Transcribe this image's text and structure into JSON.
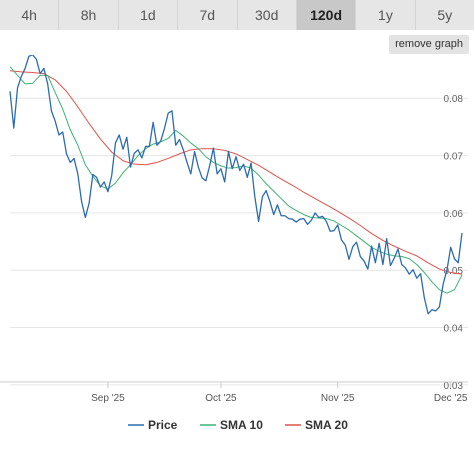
{
  "tabs": [
    {
      "label": "4h",
      "active": false
    },
    {
      "label": "8h",
      "active": false
    },
    {
      "label": "1d",
      "active": false
    },
    {
      "label": "7d",
      "active": false
    },
    {
      "label": "30d",
      "active": false
    },
    {
      "label": "120d",
      "active": true
    },
    {
      "label": "1y",
      "active": false
    },
    {
      "label": "5y",
      "active": false
    }
  ],
  "remove_graph_label": "remove graph",
  "chart_data": {
    "type": "line",
    "xlim": [
      "2025-08-06",
      "2025-12-04"
    ],
    "ylim": [
      0.0305,
      0.0858
    ],
    "x_ticks": [
      {
        "date": "2025-09-01",
        "label": "Sep '25"
      },
      {
        "date": "2025-10-01",
        "label": "Oct '25"
      },
      {
        "date": "2025-11-01",
        "label": "Nov '25"
      },
      {
        "date": "2025-12-01",
        "label": "Dec '25"
      }
    ],
    "y_ticks": [
      {
        "value": 0.03,
        "label": "0.03"
      },
      {
        "value": 0.04,
        "label": "0.04"
      },
      {
        "value": 0.05,
        "label": "0.05"
      },
      {
        "value": 0.06,
        "label": "0.06"
      },
      {
        "value": 0.07,
        "label": "0.07"
      },
      {
        "value": 0.08,
        "label": "0.08"
      }
    ],
    "grid": "horizontal",
    "legend_position": "bottom",
    "series": [
      {
        "name": "Price",
        "color": "#2b6cb0",
        "points": [
          [
            "2025-08-06",
            0.0812
          ],
          [
            "2025-08-07",
            0.0748
          ],
          [
            "2025-08-08",
            0.0818
          ],
          [
            "2025-08-09",
            0.0838
          ],
          [
            "2025-08-10",
            0.0852
          ],
          [
            "2025-08-11",
            0.0873
          ],
          [
            "2025-08-12",
            0.0876
          ],
          [
            "2025-08-13",
            0.0868
          ],
          [
            "2025-08-14",
            0.0843
          ],
          [
            "2025-08-15",
            0.0852
          ],
          [
            "2025-08-16",
            0.0825
          ],
          [
            "2025-08-17",
            0.0778
          ],
          [
            "2025-08-18",
            0.076
          ],
          [
            "2025-08-19",
            0.0736
          ],
          [
            "2025-08-20",
            0.0741
          ],
          [
            "2025-08-21",
            0.0703
          ],
          [
            "2025-08-22",
            0.0688
          ],
          [
            "2025-08-23",
            0.0695
          ],
          [
            "2025-08-24",
            0.0668
          ],
          [
            "2025-08-25",
            0.062
          ],
          [
            "2025-08-26",
            0.0592
          ],
          [
            "2025-08-27",
            0.0617
          ],
          [
            "2025-08-28",
            0.0667
          ],
          [
            "2025-08-29",
            0.0662
          ],
          [
            "2025-08-30",
            0.0645
          ],
          [
            "2025-08-31",
            0.0654
          ],
          [
            "2025-09-01",
            0.0637
          ],
          [
            "2025-09-02",
            0.0665
          ],
          [
            "2025-09-03",
            0.0722
          ],
          [
            "2025-09-04",
            0.0736
          ],
          [
            "2025-09-05",
            0.0711
          ],
          [
            "2025-09-06",
            0.0732
          ],
          [
            "2025-09-07",
            0.068
          ],
          [
            "2025-09-08",
            0.0704
          ],
          [
            "2025-09-09",
            0.071
          ],
          [
            "2025-09-10",
            0.0696
          ],
          [
            "2025-09-11",
            0.0716
          ],
          [
            "2025-09-12",
            0.0716
          ],
          [
            "2025-09-13",
            0.0758
          ],
          [
            "2025-09-14",
            0.0718
          ],
          [
            "2025-09-15",
            0.0725
          ],
          [
            "2025-09-16",
            0.0747
          ],
          [
            "2025-09-17",
            0.0774
          ],
          [
            "2025-09-18",
            0.0778
          ],
          [
            "2025-09-19",
            0.0718
          ],
          [
            "2025-09-20",
            0.0728
          ],
          [
            "2025-09-21",
            0.071
          ],
          [
            "2025-09-22",
            0.0688
          ],
          [
            "2025-09-23",
            0.0668
          ],
          [
            "2025-09-24",
            0.0707
          ],
          [
            "2025-09-25",
            0.068
          ],
          [
            "2025-09-26",
            0.0661
          ],
          [
            "2025-09-27",
            0.0656
          ],
          [
            "2025-09-28",
            0.0682
          ],
          [
            "2025-09-29",
            0.0713
          ],
          [
            "2025-09-30",
            0.0668
          ],
          [
            "2025-10-01",
            0.0677
          ],
          [
            "2025-10-02",
            0.0654
          ],
          [
            "2025-10-03",
            0.0707
          ],
          [
            "2025-10-04",
            0.0677
          ],
          [
            "2025-10-05",
            0.0698
          ],
          [
            "2025-10-06",
            0.0674
          ],
          [
            "2025-10-07",
            0.0685
          ],
          [
            "2025-10-08",
            0.0662
          ],
          [
            "2025-10-09",
            0.0687
          ],
          [
            "2025-10-10",
            0.0628
          ],
          [
            "2025-10-11",
            0.0585
          ],
          [
            "2025-10-12",
            0.0628
          ],
          [
            "2025-10-13",
            0.0639
          ],
          [
            "2025-10-14",
            0.062
          ],
          [
            "2025-10-15",
            0.0597
          ],
          [
            "2025-10-16",
            0.0614
          ],
          [
            "2025-10-17",
            0.0595
          ],
          [
            "2025-10-18",
            0.0595
          ],
          [
            "2025-10-19",
            0.059
          ],
          [
            "2025-10-20",
            0.0589
          ],
          [
            "2025-10-21",
            0.0584
          ],
          [
            "2025-10-22",
            0.0589
          ],
          [
            "2025-10-23",
            0.059
          ],
          [
            "2025-10-24",
            0.058
          ],
          [
            "2025-10-25",
            0.0587
          ],
          [
            "2025-10-26",
            0.06
          ],
          [
            "2025-10-27",
            0.0592
          ],
          [
            "2025-10-28",
            0.0594
          ],
          [
            "2025-10-29",
            0.0585
          ],
          [
            "2025-10-30",
            0.0568
          ],
          [
            "2025-10-31",
            0.0569
          ],
          [
            "2025-11-01",
            0.0579
          ],
          [
            "2025-11-02",
            0.0553
          ],
          [
            "2025-11-03",
            0.0544
          ],
          [
            "2025-11-04",
            0.0519
          ],
          [
            "2025-11-05",
            0.0541
          ],
          [
            "2025-11-06",
            0.0549
          ],
          [
            "2025-11-07",
            0.0524
          ],
          [
            "2025-11-08",
            0.0516
          ],
          [
            "2025-11-09",
            0.0502
          ],
          [
            "2025-11-10",
            0.0542
          ],
          [
            "2025-11-11",
            0.0513
          ],
          [
            "2025-11-12",
            0.0547
          ],
          [
            "2025-11-13",
            0.051
          ],
          [
            "2025-11-14",
            0.0555
          ],
          [
            "2025-11-15",
            0.0508
          ],
          [
            "2025-11-16",
            0.0521
          ],
          [
            "2025-11-17",
            0.0537
          ],
          [
            "2025-11-18",
            0.051
          ],
          [
            "2025-11-19",
            0.0504
          ],
          [
            "2025-11-20",
            0.0493
          ],
          [
            "2025-11-21",
            0.0501
          ],
          [
            "2025-11-22",
            0.0486
          ],
          [
            "2025-11-23",
            0.0494
          ],
          [
            "2025-11-24",
            0.0452
          ],
          [
            "2025-11-25",
            0.0424
          ],
          [
            "2025-11-26",
            0.0431
          ],
          [
            "2025-11-27",
            0.0429
          ],
          [
            "2025-11-28",
            0.0436
          ],
          [
            "2025-11-29",
            0.0476
          ],
          [
            "2025-11-30",
            0.05
          ],
          [
            "2025-12-01",
            0.054
          ],
          [
            "2025-12-02",
            0.052
          ],
          [
            "2025-12-03",
            0.0513
          ],
          [
            "2025-12-04",
            0.0565
          ]
        ]
      },
      {
        "name": "SMA 10",
        "color": "#3cb371",
        "points": [
          [
            "2025-08-06",
            0.0855
          ],
          [
            "2025-08-08",
            0.084
          ],
          [
            "2025-08-10",
            0.0825
          ],
          [
            "2025-08-12",
            0.0826
          ],
          [
            "2025-08-14",
            0.084
          ],
          [
            "2025-08-16",
            0.084
          ],
          [
            "2025-08-18",
            0.081
          ],
          [
            "2025-08-20",
            0.0781
          ],
          [
            "2025-08-22",
            0.0745
          ],
          [
            "2025-08-24",
            0.0718
          ],
          [
            "2025-08-26",
            0.0684
          ],
          [
            "2025-08-28",
            0.0664
          ],
          [
            "2025-08-30",
            0.0647
          ],
          [
            "2025-09-01",
            0.0642
          ],
          [
            "2025-09-03",
            0.0652
          ],
          [
            "2025-09-05",
            0.067
          ],
          [
            "2025-09-07",
            0.0684
          ],
          [
            "2025-09-09",
            0.07
          ],
          [
            "2025-09-11",
            0.0712
          ],
          [
            "2025-09-13",
            0.072
          ],
          [
            "2025-09-15",
            0.0724
          ],
          [
            "2025-09-17",
            0.073
          ],
          [
            "2025-09-19",
            0.0744
          ],
          [
            "2025-09-21",
            0.0734
          ],
          [
            "2025-09-23",
            0.0722
          ],
          [
            "2025-09-25",
            0.0712
          ],
          [
            "2025-09-27",
            0.0698
          ],
          [
            "2025-09-29",
            0.0688
          ],
          [
            "2025-10-01",
            0.0682
          ],
          [
            "2025-10-03",
            0.0678
          ],
          [
            "2025-10-05",
            0.0679
          ],
          [
            "2025-10-07",
            0.0682
          ],
          [
            "2025-10-09",
            0.0678
          ],
          [
            "2025-10-11",
            0.0666
          ],
          [
            "2025-10-13",
            0.0651
          ],
          [
            "2025-10-15",
            0.0638
          ],
          [
            "2025-10-17",
            0.0625
          ],
          [
            "2025-10-19",
            0.0612
          ],
          [
            "2025-10-21",
            0.0604
          ],
          [
            "2025-10-23",
            0.0597
          ],
          [
            "2025-10-25",
            0.0592
          ],
          [
            "2025-10-27",
            0.0591
          ],
          [
            "2025-10-29",
            0.059
          ],
          [
            "2025-10-31",
            0.0586
          ],
          [
            "2025-11-02",
            0.0578
          ],
          [
            "2025-11-04",
            0.057
          ],
          [
            "2025-11-06",
            0.056
          ],
          [
            "2025-11-08",
            0.055
          ],
          [
            "2025-11-10",
            0.054
          ],
          [
            "2025-11-12",
            0.0533
          ],
          [
            "2025-11-14",
            0.0528
          ],
          [
            "2025-11-16",
            0.0525
          ],
          [
            "2025-11-18",
            0.0524
          ],
          [
            "2025-11-20",
            0.052
          ],
          [
            "2025-11-22",
            0.051
          ],
          [
            "2025-11-24",
            0.0496
          ],
          [
            "2025-11-26",
            0.048
          ],
          [
            "2025-11-28",
            0.0466
          ],
          [
            "2025-11-30",
            0.046
          ],
          [
            "2025-12-02",
            0.0466
          ],
          [
            "2025-12-04",
            0.0492
          ]
        ]
      },
      {
        "name": "SMA 20",
        "color": "#e0524a",
        "points": [
          [
            "2025-08-06",
            0.0848
          ],
          [
            "2025-08-09",
            0.0846
          ],
          [
            "2025-08-12",
            0.0845
          ],
          [
            "2025-08-15",
            0.0843
          ],
          [
            "2025-08-18",
            0.0832
          ],
          [
            "2025-08-21",
            0.0812
          ],
          [
            "2025-08-24",
            0.0785
          ],
          [
            "2025-08-27",
            0.0756
          ],
          [
            "2025-08-30",
            0.0729
          ],
          [
            "2025-09-02",
            0.0706
          ],
          [
            "2025-09-05",
            0.0691
          ],
          [
            "2025-09-08",
            0.0685
          ],
          [
            "2025-09-11",
            0.0684
          ],
          [
            "2025-09-14",
            0.0688
          ],
          [
            "2025-09-17",
            0.0695
          ],
          [
            "2025-09-20",
            0.0703
          ],
          [
            "2025-09-23",
            0.071
          ],
          [
            "2025-09-26",
            0.0712
          ],
          [
            "2025-09-29",
            0.0712
          ],
          [
            "2025-10-02",
            0.0709
          ],
          [
            "2025-10-05",
            0.0703
          ],
          [
            "2025-10-08",
            0.0693
          ],
          [
            "2025-10-11",
            0.0683
          ],
          [
            "2025-10-14",
            0.0671
          ],
          [
            "2025-10-17",
            0.0659
          ],
          [
            "2025-10-20",
            0.0648
          ],
          [
            "2025-10-23",
            0.0636
          ],
          [
            "2025-10-26",
            0.0625
          ],
          [
            "2025-10-29",
            0.0614
          ],
          [
            "2025-11-01",
            0.0603
          ],
          [
            "2025-11-04",
            0.0591
          ],
          [
            "2025-11-07",
            0.0578
          ],
          [
            "2025-11-10",
            0.0564
          ],
          [
            "2025-11-13",
            0.0552
          ],
          [
            "2025-11-16",
            0.0542
          ],
          [
            "2025-11-19",
            0.0533
          ],
          [
            "2025-11-22",
            0.0525
          ],
          [
            "2025-11-25",
            0.0513
          ],
          [
            "2025-11-28",
            0.0502
          ],
          [
            "2025-12-01",
            0.0496
          ],
          [
            "2025-12-04",
            0.0493
          ]
        ]
      }
    ]
  }
}
